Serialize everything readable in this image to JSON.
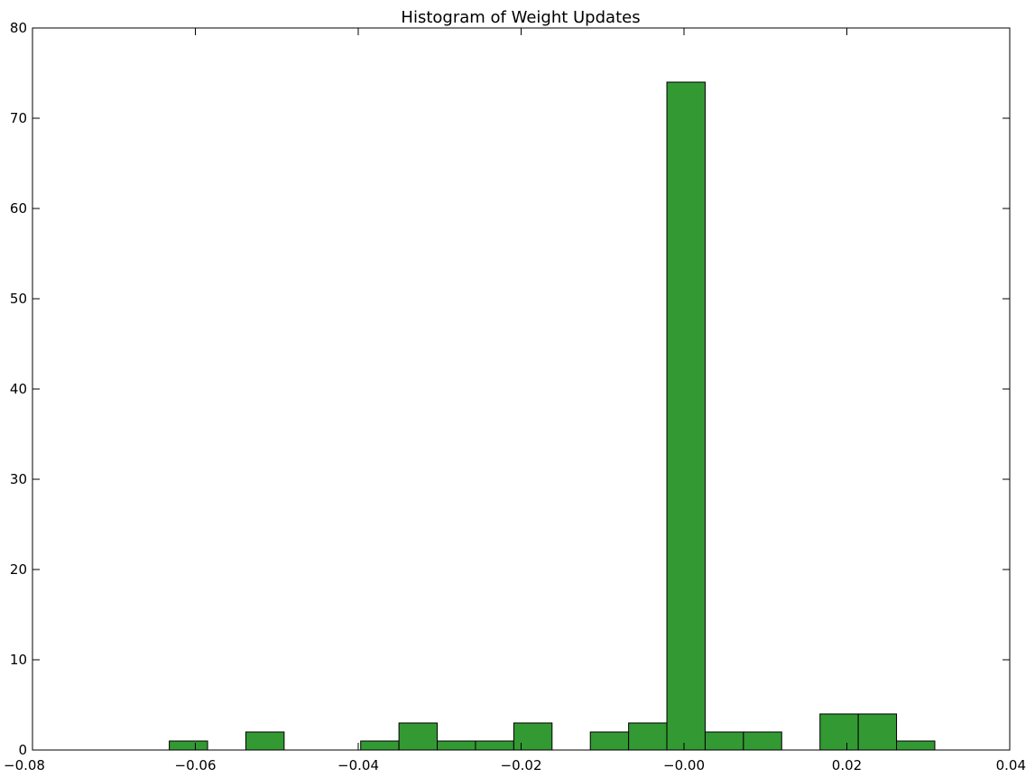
{
  "chart_data": {
    "type": "bar",
    "title": "Histogram of Weight Updates",
    "xlabel": "",
    "ylabel": "",
    "xlim": [
      -0.08,
      0.04
    ],
    "ylim": [
      0,
      80
    ],
    "grid": false,
    "bar_color": "#339933",
    "edge_color": "#000000",
    "x_ticks": [
      -0.08,
      -0.06,
      -0.04,
      -0.02,
      0.0,
      0.02,
      0.04
    ],
    "x_tick_labels": [
      "−0.08",
      "−0.06",
      "−0.04",
      "−0.02",
      "−0.00",
      "0.02",
      "0.04"
    ],
    "y_ticks": [
      0,
      10,
      20,
      30,
      40,
      50,
      60,
      70,
      80
    ],
    "y_tick_labels": [
      "0",
      "10",
      "20",
      "30",
      "40",
      "50",
      "60",
      "70",
      "80"
    ],
    "bins": [
      {
        "x0": -0.0632,
        "x1": -0.0585,
        "count": 1
      },
      {
        "x0": -0.0538,
        "x1": -0.0491,
        "count": 2
      },
      {
        "x0": -0.0397,
        "x1": -0.035,
        "count": 1
      },
      {
        "x0": -0.035,
        "x1": -0.0303,
        "count": 3
      },
      {
        "x0": -0.0303,
        "x1": -0.0256,
        "count": 1
      },
      {
        "x0": -0.0256,
        "x1": -0.0209,
        "count": 1
      },
      {
        "x0": -0.0209,
        "x1": -0.0162,
        "count": 3
      },
      {
        "x0": -0.0115,
        "x1": -0.0068,
        "count": 2
      },
      {
        "x0": -0.0068,
        "x1": -0.0021,
        "count": 3
      },
      {
        "x0": -0.0021,
        "x1": 0.0026,
        "count": 74
      },
      {
        "x0": 0.0026,
        "x1": 0.0073,
        "count": 2
      },
      {
        "x0": 0.0073,
        "x1": 0.012,
        "count": 2
      },
      {
        "x0": 0.0167,
        "x1": 0.0214,
        "count": 4
      },
      {
        "x0": 0.0214,
        "x1": 0.0261,
        "count": 4
      },
      {
        "x0": 0.0261,
        "x1": 0.0308,
        "count": 1
      }
    ]
  }
}
